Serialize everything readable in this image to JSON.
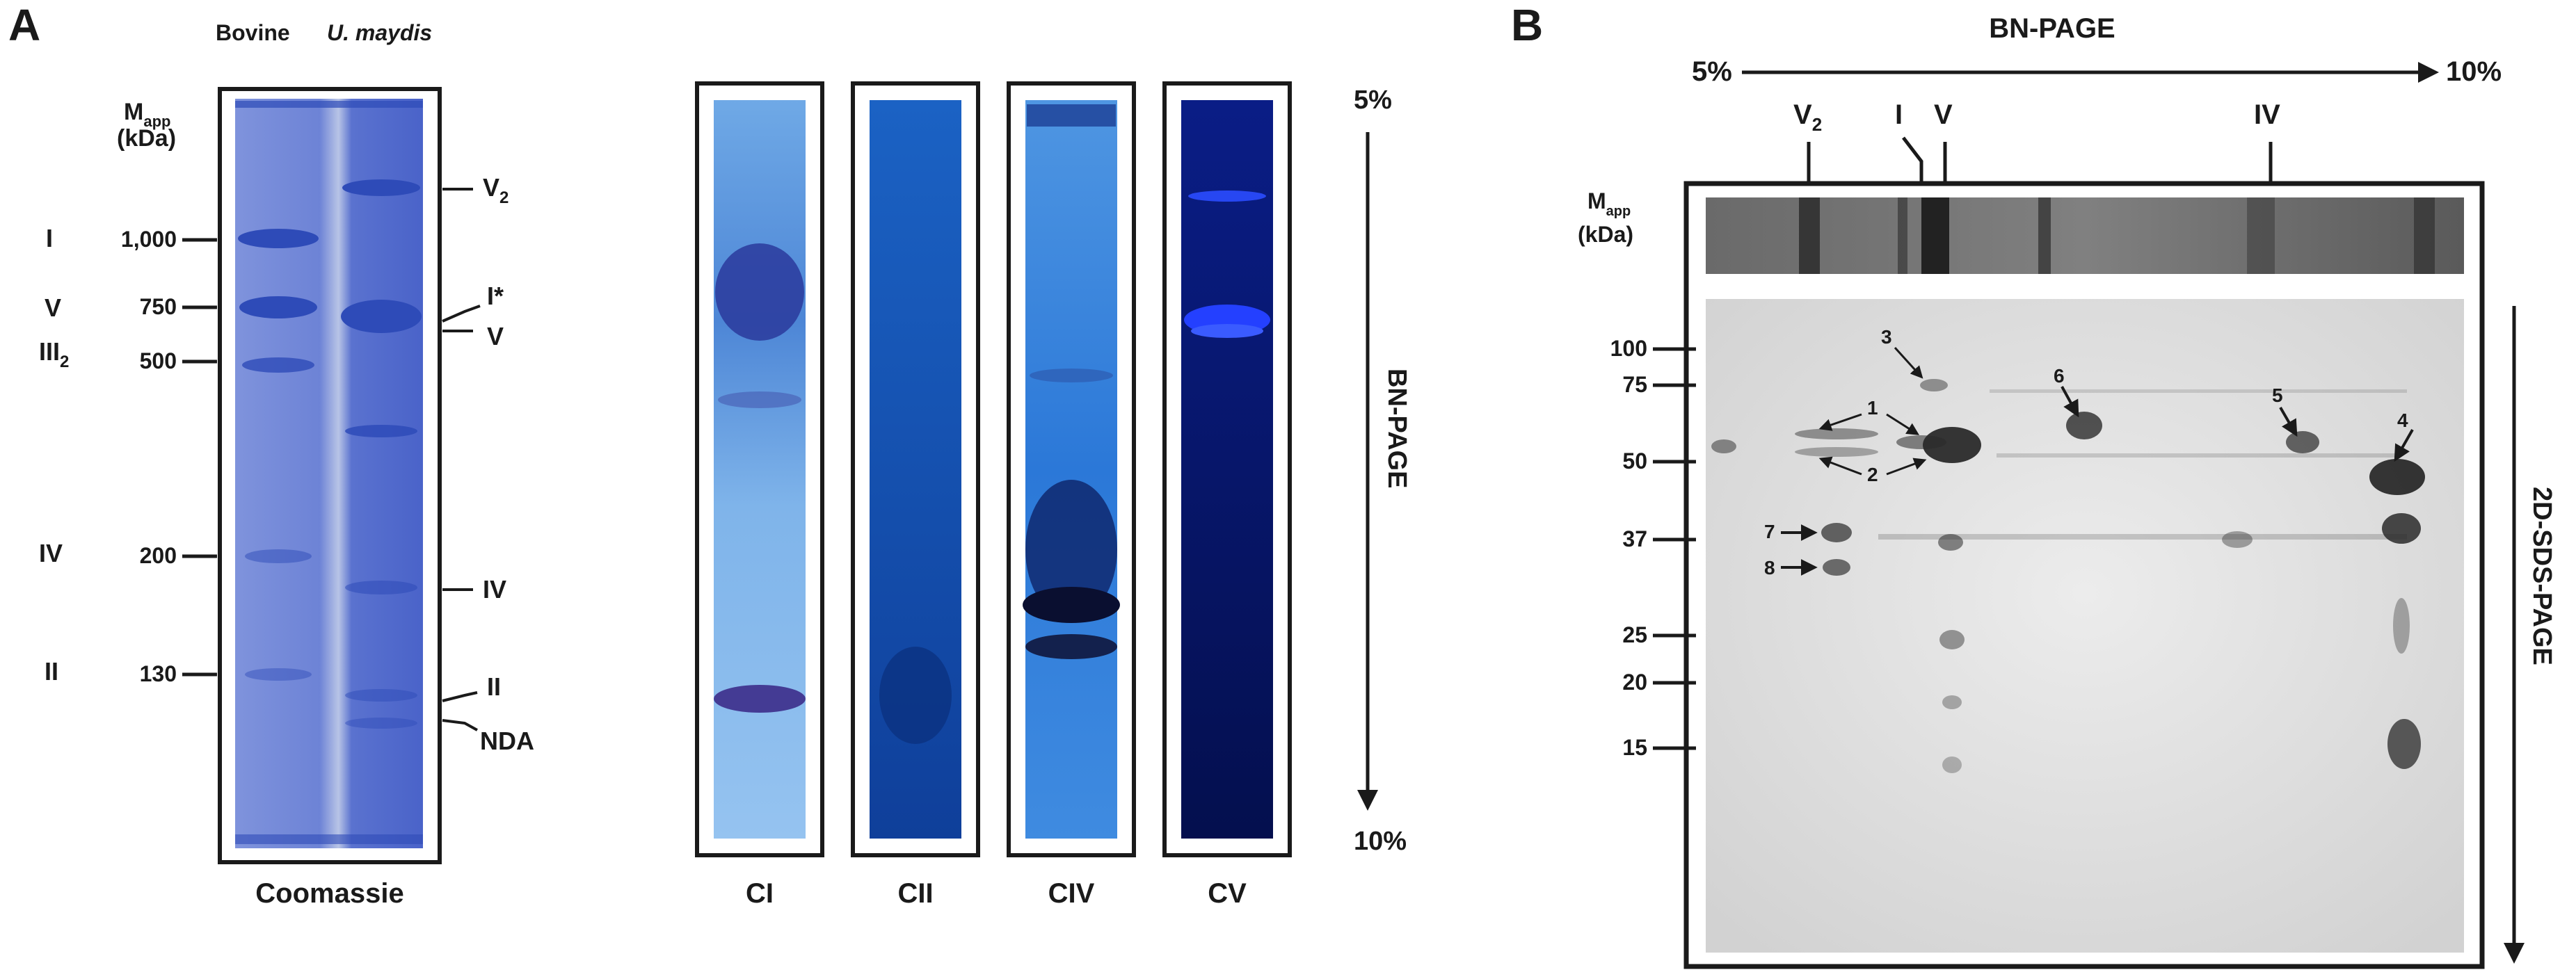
{
  "panel_a": {
    "letter": "A",
    "coomassie": {
      "header_bovine": "Bovine",
      "header_species": "U. maydis",
      "mapp_main": "M",
      "mapp_sub": "app",
      "kda_unit": "(kDa)",
      "caption": "Coomassie",
      "complex_labels": [
        {
          "main": "I",
          "sub": ""
        },
        {
          "main": "V",
          "sub": ""
        },
        {
          "main": "III",
          "sub": "2"
        },
        {
          "main": "IV",
          "sub": ""
        },
        {
          "main": "II",
          "sub": ""
        }
      ],
      "marker_labels": [
        "1,000",
        "750",
        "500",
        "200",
        "130"
      ],
      "right_labels": [
        {
          "main": "V",
          "sub": "2"
        },
        {
          "main": "I*",
          "sub": ""
        },
        {
          "main": "V",
          "sub": ""
        },
        {
          "main": "IV",
          "sub": ""
        },
        {
          "main": "II",
          "sub": ""
        },
        {
          "main": "NDA",
          "sub": ""
        }
      ]
    },
    "activity_lanes": [
      "CI",
      "CII",
      "CIV",
      "CV"
    ],
    "gradient": {
      "top": "5%",
      "bottom": "10%",
      "label": "BN-PAGE"
    }
  },
  "panel_b": {
    "letter": "B",
    "bn_title": "BN-PAGE",
    "gradient_left": "5%",
    "gradient_right": "10%",
    "complex_labels": [
      {
        "main": "V",
        "sub": "2"
      },
      {
        "main": "I",
        "sub": ""
      },
      {
        "main": "V",
        "sub": ""
      },
      {
        "main": "IV",
        "sub": ""
      }
    ],
    "mapp_main": "M",
    "mapp_sub": "app",
    "kda_unit": "(kDa)",
    "marker_labels": [
      "100",
      "75",
      "50",
      "37",
      "25",
      "20",
      "15"
    ],
    "spot_numbers": [
      "1",
      "2",
      "3",
      "4",
      "5",
      "6",
      "7",
      "8"
    ],
    "sds_label": "2D-SDS-PAGE"
  },
  "colors": {
    "ink": "#1a1a1a",
    "coomassie_blue": "#4a63c9",
    "activity_blue": "#1b55b8",
    "cv_navy": "#05145e",
    "gel_gray": "#d9d9d9"
  }
}
